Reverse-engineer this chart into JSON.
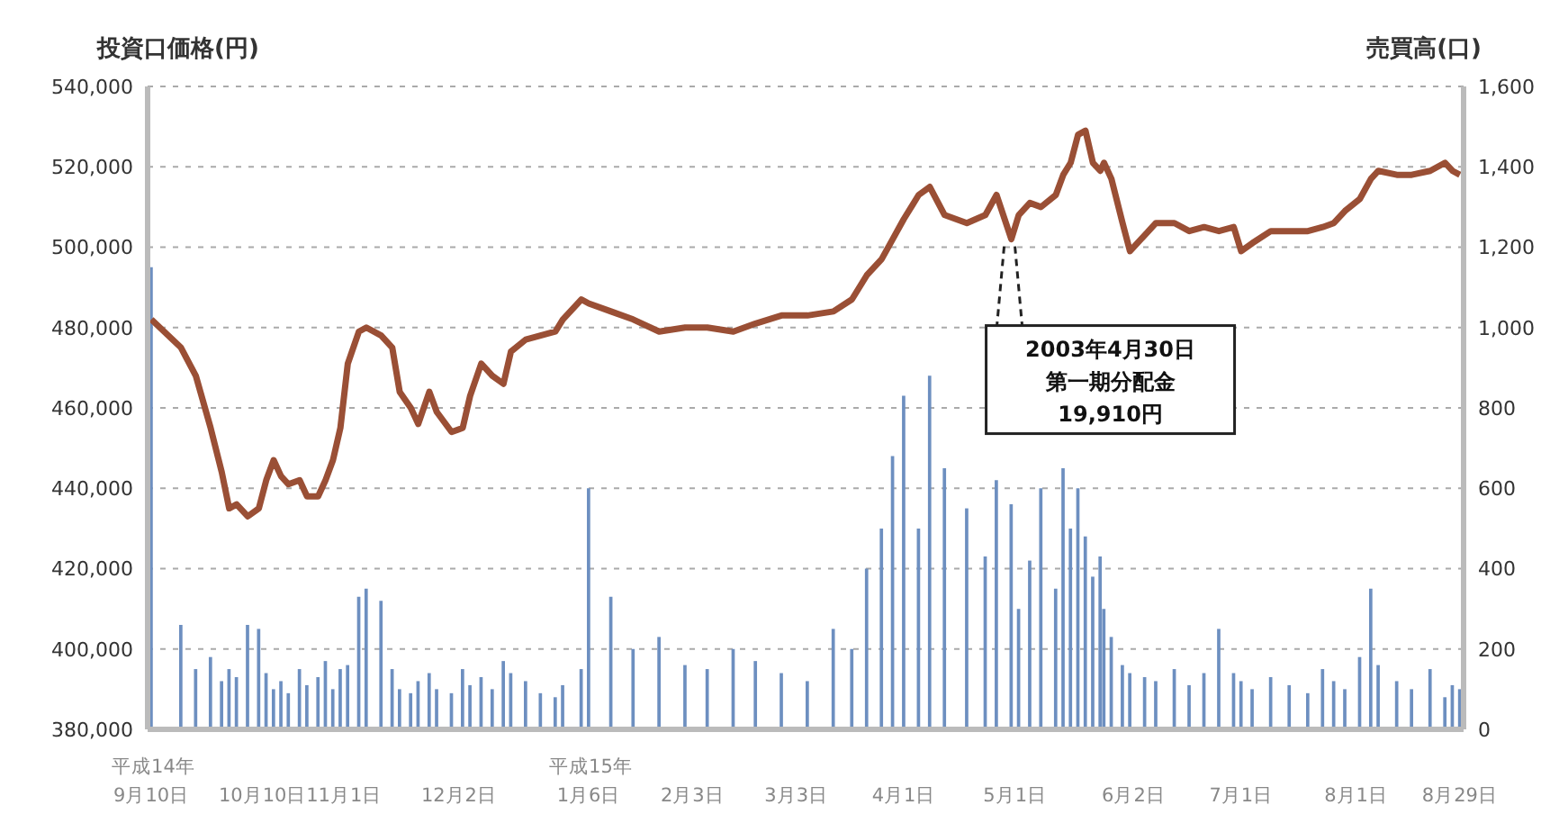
{
  "chart_data": {
    "type": "line",
    "ylabel": "投資口価格(円)",
    "y2label": "売買高(口)",
    "x": [
      "2002-09-10",
      "2002-09-18",
      "2002-09-22",
      "2002-09-26",
      "2002-09-29",
      "2002-10-01",
      "2002-10-03",
      "2002-10-06",
      "2002-10-09",
      "2002-10-11",
      "2002-10-13",
      "2002-10-15",
      "2002-10-17",
      "2002-10-20",
      "2002-10-22",
      "2002-10-25",
      "2002-10-27",
      "2002-10-29",
      "2002-10-31",
      "2002-11-02",
      "2002-11-05",
      "2002-11-07",
      "2002-11-11",
      "2002-11-14",
      "2002-11-16",
      "2002-11-19",
      "2002-11-21",
      "2002-11-24",
      "2002-11-26",
      "2002-11-30",
      "2002-12-03",
      "2002-12-05",
      "2002-12-08",
      "2002-12-11",
      "2002-12-14",
      "2002-12-16",
      "2002-12-20",
      "2002-12-24",
      "2002-12-28",
      "2002-12-30",
      "2003-01-04",
      "2003-01-06",
      "2003-01-12",
      "2003-01-18",
      "2003-01-25",
      "2003-02-01",
      "2003-02-07",
      "2003-02-14",
      "2003-02-20",
      "2003-02-27",
      "2003-03-06",
      "2003-03-13",
      "2003-03-18",
      "2003-03-22",
      "2003-03-26",
      "2003-03-29",
      "2003-04-01",
      "2003-04-05",
      "2003-04-08",
      "2003-04-12",
      "2003-04-18",
      "2003-04-23",
      "2003-04-26",
      "2003-04-30",
      "2003-05-02",
      "2003-05-05",
      "2003-05-08",
      "2003-05-12",
      "2003-05-14",
      "2003-05-16",
      "2003-05-18",
      "2003-05-20",
      "2003-05-22",
      "2003-05-24",
      "2003-05-25",
      "2003-05-27",
      "2003-05-30",
      "2003-06-01",
      "2003-06-05",
      "2003-06-08",
      "2003-06-13",
      "2003-06-17",
      "2003-06-21",
      "2003-06-25",
      "2003-06-29",
      "2003-07-01",
      "2003-07-04",
      "2003-07-09",
      "2003-07-14",
      "2003-07-19",
      "2003-07-23",
      "2003-07-26",
      "2003-07-29",
      "2003-08-02",
      "2003-08-05",
      "2003-08-07",
      "2003-08-12",
      "2003-08-16",
      "2003-08-21",
      "2003-08-25",
      "2003-08-27",
      "2003-08-29"
    ],
    "series": [
      {
        "type": "bar",
        "axis": "y2",
        "color": "#6d8fc0",
        "values": [
          1150,
          260,
          150,
          180,
          120,
          150,
          130,
          260,
          250,
          140,
          100,
          120,
          90,
          150,
          110,
          130,
          170,
          100,
          150,
          160,
          330,
          350,
          320,
          150,
          100,
          90,
          120,
          140,
          100,
          90,
          150,
          110,
          130,
          100,
          170,
          140,
          120,
          90,
          80,
          110,
          150,
          600,
          330,
          200,
          230,
          160,
          150,
          200,
          170,
          140,
          120,
          250,
          200,
          400,
          500,
          680,
          830,
          500,
          880,
          650,
          550,
          430,
          620,
          560,
          300,
          420,
          600,
          350,
          650,
          500,
          600,
          480,
          380,
          430,
          300,
          230,
          160,
          140,
          130,
          120,
          150,
          110,
          140,
          250,
          140,
          120,
          100,
          130,
          110,
          90,
          150,
          120,
          100,
          180,
          350,
          160,
          120,
          100,
          150,
          80,
          110,
          100
        ]
      },
      {
        "axis": "y",
        "color": "#9a4f35",
        "values": [
          482000,
          475000,
          468000,
          455000,
          444000,
          435000,
          436000,
          433000,
          435000,
          442000,
          447000,
          443000,
          441000,
          442000,
          438000,
          438000,
          442000,
          447000,
          455000,
          471000,
          479000,
          480000,
          478000,
          475000,
          464000,
          460000,
          456000,
          464000,
          459000,
          454000,
          455000,
          463000,
          471000,
          468000,
          466000,
          474000,
          477000,
          478000,
          479000,
          482000,
          487000,
          486000,
          484000,
          482000,
          479000,
          480000,
          480000,
          479000,
          481000,
          483000,
          483000,
          484000,
          487000,
          493000,
          497000,
          502000,
          507000,
          513000,
          515000,
          508000,
          506000,
          508000,
          513000,
          502000,
          508000,
          511000,
          510000,
          513000,
          518000,
          521000,
          528000,
          529000,
          521000,
          519000,
          521000,
          517000,
          506000,
          499000,
          503000,
          506000,
          506000,
          504000,
          505000,
          504000,
          505000,
          499000,
          501000,
          504000,
          504000,
          504000,
          505000,
          506000,
          509000,
          512000,
          517000,
          519000,
          518000,
          518000,
          519000,
          521000,
          519000,
          518000
        ]
      }
    ],
    "xlim": [
      "2002-09-09",
      "2003-08-30"
    ],
    "xticks": [
      {
        "value": "2002-09-10",
        "label": "平成14年\n9月10日"
      },
      {
        "value": "2002-10-10",
        "label": "10月10日"
      },
      {
        "value": "2002-11-01",
        "label": "11月1日"
      },
      {
        "value": "2002-12-02",
        "label": "12月2日"
      },
      {
        "value": "2003-01-06",
        "label": "平成15年\n1月6日"
      },
      {
        "value": "2003-02-03",
        "label": "2月3日"
      },
      {
        "value": "2003-03-03",
        "label": "3月3日"
      },
      {
        "value": "2003-04-01",
        "label": "4月1日"
      },
      {
        "value": "2003-05-01",
        "label": "5月1日"
      },
      {
        "value": "2003-06-02",
        "label": "6月2日"
      },
      {
        "value": "2003-07-01",
        "label": "7月1日"
      },
      {
        "value": "2003-08-01",
        "label": "8月1日"
      },
      {
        "value": "2003-08-29",
        "label": "8月29日"
      }
    ],
    "ylim": [
      380000,
      540000
    ],
    "yticks": [
      {
        "value": 380000,
        "label": "380,000"
      },
      {
        "value": 400000,
        "label": "400,000"
      },
      {
        "value": 420000,
        "label": "420,000"
      },
      {
        "value": 440000,
        "label": "440,000"
      },
      {
        "value": 460000,
        "label": "460,000"
      },
      {
        "value": 480000,
        "label": "480,000"
      },
      {
        "value": 500000,
        "label": "500,000"
      },
      {
        "value": 520000,
        "label": "520,000"
      },
      {
        "value": 540000,
        "label": "540,000"
      }
    ],
    "y2lim": [
      0,
      1600
    ],
    "y2ticks": [
      0,
      200,
      400,
      600,
      800,
      {
        "value": 1000,
        "label": "1,000"
      },
      {
        "value": 1200,
        "label": "1,200"
      },
      {
        "value": 1400,
        "label": "1,400"
      },
      {
        "value": 1600,
        "label": "1,600"
      }
    ],
    "grid": "y",
    "annotations": [
      {
        "text": "2003年4月30日",
        "x": "2003-04-30",
        "y": 502000
      },
      "第一期分配金",
      "19,910円"
    ]
  }
}
